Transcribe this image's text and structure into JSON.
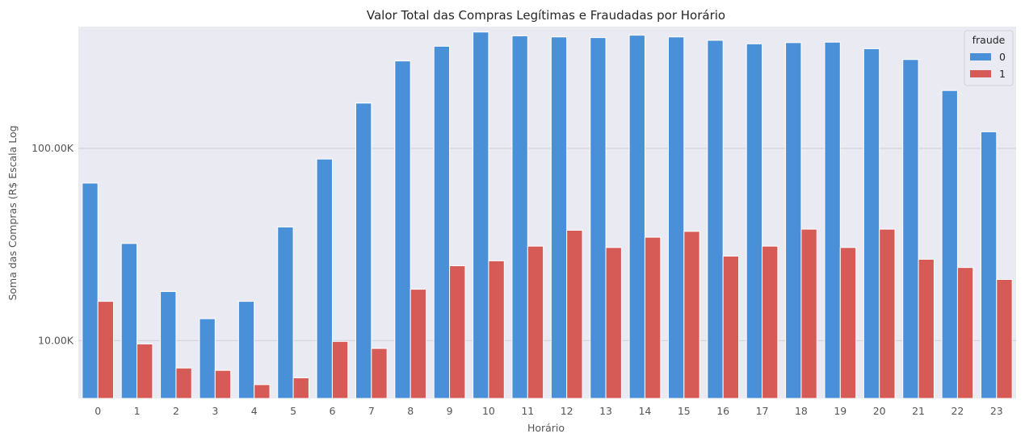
{
  "chart_data": {
    "type": "bar",
    "title": "Valor Total das Compras Legítimas e Fraudadas por Horário",
    "xlabel": "Horário",
    "ylabel": "Soma das Compras (R$ Escala Log",
    "yscale": "log",
    "ylim": [
      5000,
      430000
    ],
    "yticks": [
      {
        "value": 10000,
        "label": "10.00K"
      },
      {
        "value": 100000,
        "label": "100.00K"
      }
    ],
    "grid": true,
    "categories": [
      "0",
      "1",
      "2",
      "3",
      "4",
      "5",
      "6",
      "7",
      "8",
      "9",
      "10",
      "11",
      "12",
      "13",
      "14",
      "15",
      "16",
      "17",
      "18",
      "19",
      "20",
      "21",
      "22",
      "23"
    ],
    "legend": {
      "title": "fraude",
      "position": "top-right"
    },
    "series": [
      {
        "name": "0",
        "color": "#4a90d9",
        "values": [
          66000,
          32000,
          18000,
          13000,
          16000,
          39000,
          88000,
          172000,
          285000,
          340000,
          403000,
          385000,
          380000,
          377000,
          388000,
          380000,
          365000,
          350000,
          355000,
          357000,
          330000,
          290000,
          200000,
          122000
        ]
      },
      {
        "name": "1",
        "color": "#d65a55",
        "values": [
          16000,
          9600,
          7200,
          7000,
          5900,
          6400,
          9900,
          9100,
          18500,
          24500,
          26000,
          31000,
          37500,
          30500,
          34500,
          37000,
          27500,
          31000,
          38000,
          30500,
          38000,
          26500,
          24000,
          20800
        ]
      }
    ]
  }
}
